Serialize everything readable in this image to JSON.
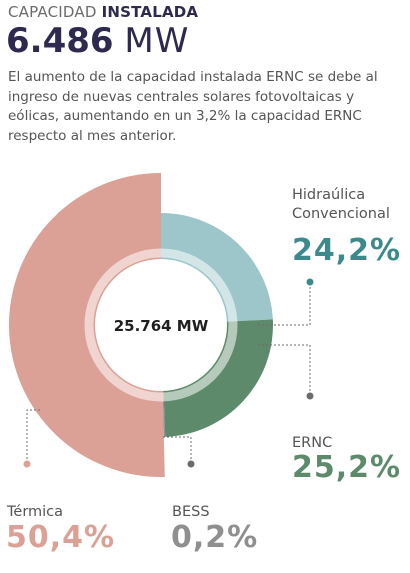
{
  "header": {
    "label_regular": "CAPACIDAD",
    "label_bold": "INSTALADA",
    "value": "6.486",
    "unit": "MW"
  },
  "description": "El aumento de la capacidad instalada ERNC se debe al ingreso de nuevas centrales solares fotovoltaicas y eólicas, aumentando en un 3,2% la capacidad ERNC respecto al mes anterior.",
  "chart_data": {
    "type": "pie",
    "center_label": "25.764 MW",
    "series": [
      {
        "name": "Hidraúlica Convencional",
        "value": 24.2,
        "label": "24,2%",
        "color": "#9cc6c9"
      },
      {
        "name": "ERNC",
        "value": 25.2,
        "label": "25,2%",
        "color": "#5e8a6c"
      },
      {
        "name": "BESS",
        "value": 0.2,
        "label": "0,2%",
        "color": "#8f8f8f"
      },
      {
        "name": "Térmica",
        "value": 50.4,
        "label": "50,4%",
        "color": "#dba196"
      }
    ]
  },
  "labels": {
    "hidraulica_line1": "Hidraúlica",
    "hidraulica_line2": "Convencional",
    "hidraulica_pct": "24,2%",
    "ernc_name": "ERNC",
    "ernc_pct": "25,2%",
    "termica_name": "Térmica",
    "termica_pct": "50,4%",
    "bess_name": "BESS",
    "bess_pct": "0,2%"
  },
  "colors": {
    "title": "#2e2a4f",
    "hidraulica_text": "#3d8a8d",
    "ernc_text": "#5e8a6c",
    "termica_text": "#dba196",
    "bess_text": "#8f8f8f",
    "leader": "#6b6b6b"
  }
}
